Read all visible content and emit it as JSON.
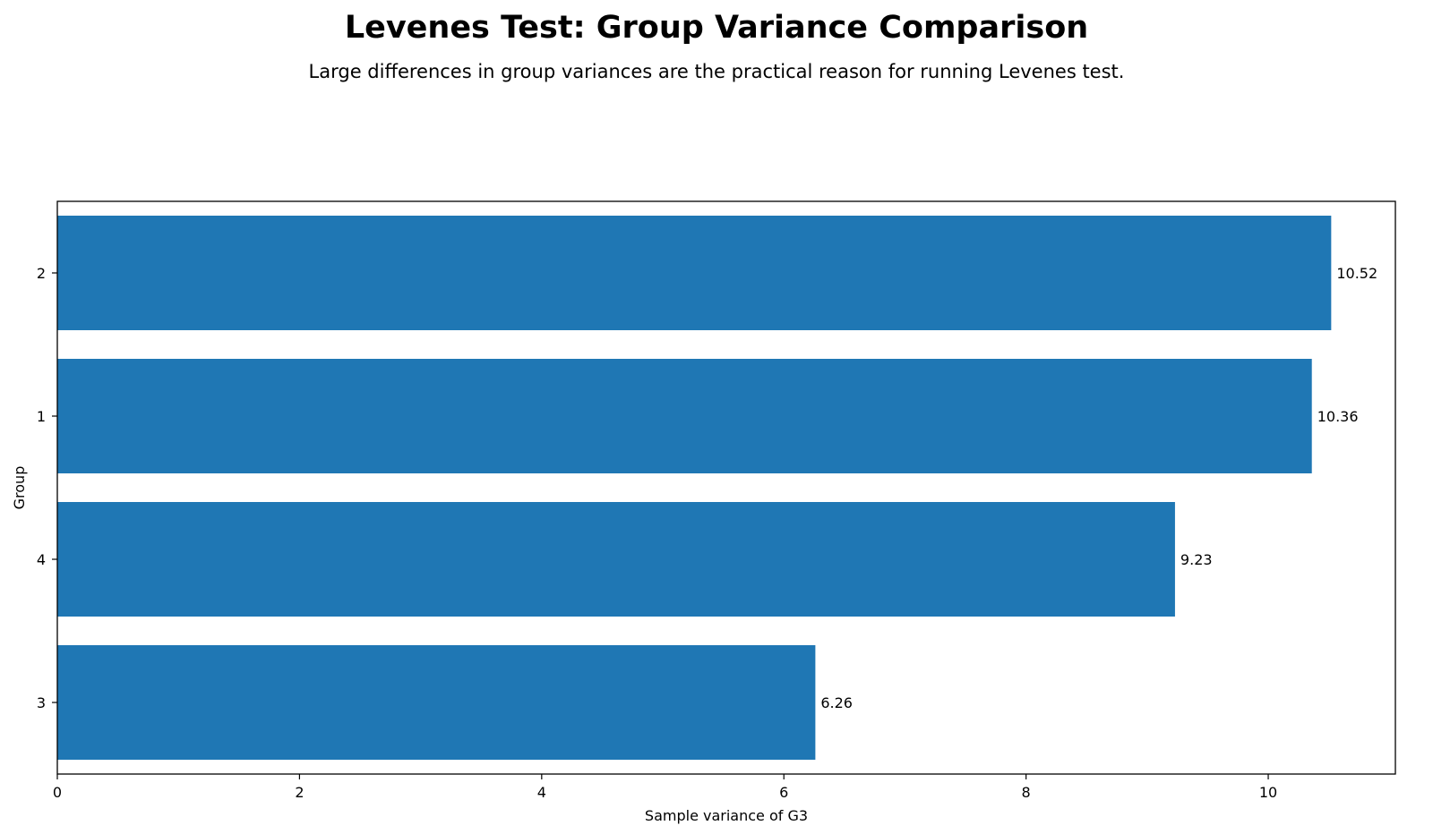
{
  "chart_data": {
    "type": "bar",
    "orientation": "horizontal",
    "title": "Levenes Test: Group Variance Comparison",
    "subtitle": "Large differences in group variances are the practical reason for running Levenes test.",
    "xlabel": "Sample variance of G3",
    "ylabel": "Group",
    "categories": [
      "2",
      "1",
      "4",
      "3"
    ],
    "values": [
      10.52,
      10.36,
      9.23,
      6.26
    ],
    "value_labels": [
      "10.52",
      "10.36",
      "9.23",
      "6.26"
    ],
    "xlim": [
      0,
      11.05
    ],
    "xticks": [
      0,
      2,
      4,
      6,
      8,
      10
    ],
    "xtick_labels": [
      "0",
      "2",
      "4",
      "6",
      "8",
      "10"
    ],
    "bar_color": "#1f77b4",
    "grid": false,
    "legend": "none"
  }
}
